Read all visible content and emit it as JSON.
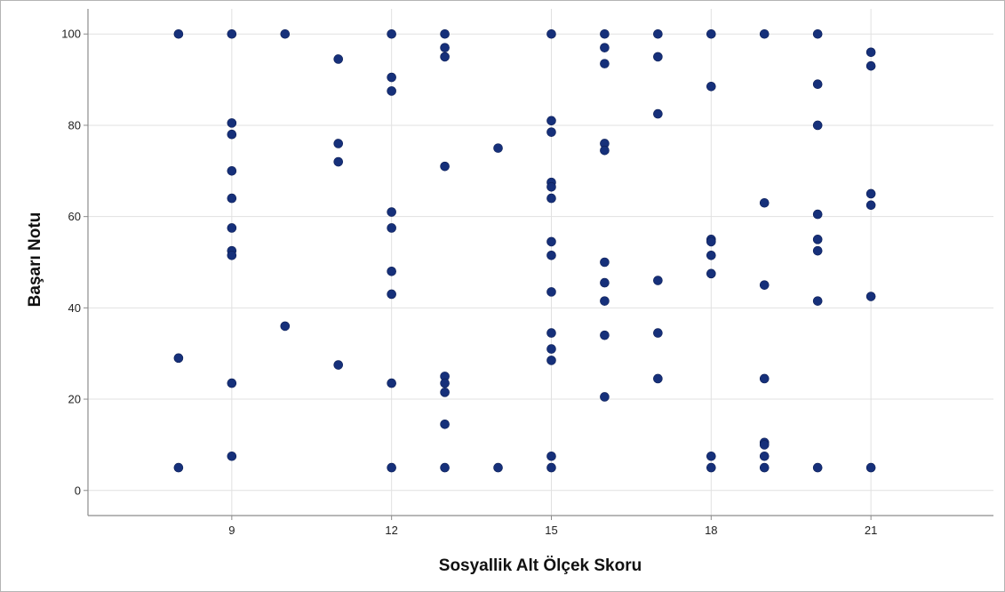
{
  "chart_data": {
    "type": "scatter",
    "title": "",
    "xlabel": "Sosyallik Alt Ölçek Skoru",
    "ylabel": "Başarı Notu",
    "xlim": [
      6.3,
      23.3
    ],
    "ylim": [
      -5.5,
      105.5
    ],
    "xticks": [
      9,
      12,
      15,
      18,
      21
    ],
    "yticks": [
      0,
      20,
      40,
      60,
      80,
      100
    ],
    "grid": true,
    "marker_color": "#16307a",
    "points": [
      {
        "x": 8,
        "y": 100
      },
      {
        "x": 8,
        "y": 29
      },
      {
        "x": 8,
        "y": 5
      },
      {
        "x": 9,
        "y": 100
      },
      {
        "x": 9,
        "y": 80.5
      },
      {
        "x": 9,
        "y": 78
      },
      {
        "x": 9,
        "y": 70
      },
      {
        "x": 9,
        "y": 64
      },
      {
        "x": 9,
        "y": 57.5
      },
      {
        "x": 9,
        "y": 52.5
      },
      {
        "x": 9,
        "y": 51.5
      },
      {
        "x": 9,
        "y": 23.5
      },
      {
        "x": 9,
        "y": 7.5
      },
      {
        "x": 10,
        "y": 100
      },
      {
        "x": 10,
        "y": 36
      },
      {
        "x": 11,
        "y": 94.5
      },
      {
        "x": 11,
        "y": 76
      },
      {
        "x": 11,
        "y": 72
      },
      {
        "x": 11,
        "y": 27.5
      },
      {
        "x": 12,
        "y": 100
      },
      {
        "x": 12,
        "y": 90.5
      },
      {
        "x": 12,
        "y": 87.5
      },
      {
        "x": 12,
        "y": 61
      },
      {
        "x": 12,
        "y": 57.5
      },
      {
        "x": 12,
        "y": 48
      },
      {
        "x": 12,
        "y": 43
      },
      {
        "x": 12,
        "y": 23.5
      },
      {
        "x": 12,
        "y": 5
      },
      {
        "x": 13,
        "y": 100
      },
      {
        "x": 13,
        "y": 97
      },
      {
        "x": 13,
        "y": 95
      },
      {
        "x": 13,
        "y": 71
      },
      {
        "x": 13,
        "y": 25
      },
      {
        "x": 13,
        "y": 23.5
      },
      {
        "x": 13,
        "y": 21.5
      },
      {
        "x": 13,
        "y": 14.5
      },
      {
        "x": 13,
        "y": 5
      },
      {
        "x": 14,
        "y": 75
      },
      {
        "x": 14,
        "y": 5
      },
      {
        "x": 15,
        "y": 100
      },
      {
        "x": 15,
        "y": 81
      },
      {
        "x": 15,
        "y": 78.5
      },
      {
        "x": 15,
        "y": 67.5
      },
      {
        "x": 15,
        "y": 66.5
      },
      {
        "x": 15,
        "y": 64
      },
      {
        "x": 15,
        "y": 54.5
      },
      {
        "x": 15,
        "y": 51.5
      },
      {
        "x": 15,
        "y": 43.5
      },
      {
        "x": 15,
        "y": 34.5
      },
      {
        "x": 15,
        "y": 31
      },
      {
        "x": 15,
        "y": 28.5
      },
      {
        "x": 15,
        "y": 7.5
      },
      {
        "x": 15,
        "y": 5
      },
      {
        "x": 16,
        "y": 100
      },
      {
        "x": 16,
        "y": 97
      },
      {
        "x": 16,
        "y": 93.5
      },
      {
        "x": 16,
        "y": 76
      },
      {
        "x": 16,
        "y": 74.5
      },
      {
        "x": 16,
        "y": 50
      },
      {
        "x": 16,
        "y": 45.5
      },
      {
        "x": 16,
        "y": 41.5
      },
      {
        "x": 16,
        "y": 34
      },
      {
        "x": 16,
        "y": 20.5
      },
      {
        "x": 17,
        "y": 100
      },
      {
        "x": 17,
        "y": 95
      },
      {
        "x": 17,
        "y": 82.5
      },
      {
        "x": 17,
        "y": 46
      },
      {
        "x": 17,
        "y": 34.5
      },
      {
        "x": 17,
        "y": 24.5
      },
      {
        "x": 18,
        "y": 100
      },
      {
        "x": 18,
        "y": 88.5
      },
      {
        "x": 18,
        "y": 55
      },
      {
        "x": 18,
        "y": 54.5
      },
      {
        "x": 18,
        "y": 51.5
      },
      {
        "x": 18,
        "y": 47.5
      },
      {
        "x": 18,
        "y": 7.5
      },
      {
        "x": 18,
        "y": 5
      },
      {
        "x": 19,
        "y": 100
      },
      {
        "x": 19,
        "y": 63
      },
      {
        "x": 19,
        "y": 45
      },
      {
        "x": 19,
        "y": 24.5
      },
      {
        "x": 19,
        "y": 10.5
      },
      {
        "x": 19,
        "y": 10
      },
      {
        "x": 19,
        "y": 7.5
      },
      {
        "x": 19,
        "y": 5
      },
      {
        "x": 20,
        "y": 100
      },
      {
        "x": 20,
        "y": 89
      },
      {
        "x": 20,
        "y": 80
      },
      {
        "x": 20,
        "y": 60.5
      },
      {
        "x": 20,
        "y": 55
      },
      {
        "x": 20,
        "y": 52.5
      },
      {
        "x": 20,
        "y": 41.5
      },
      {
        "x": 20,
        "y": 5
      },
      {
        "x": 21,
        "y": 96
      },
      {
        "x": 21,
        "y": 93
      },
      {
        "x": 21,
        "y": 65
      },
      {
        "x": 21,
        "y": 62.5
      },
      {
        "x": 21,
        "y": 42.5
      },
      {
        "x": 21,
        "y": 5
      }
    ]
  }
}
